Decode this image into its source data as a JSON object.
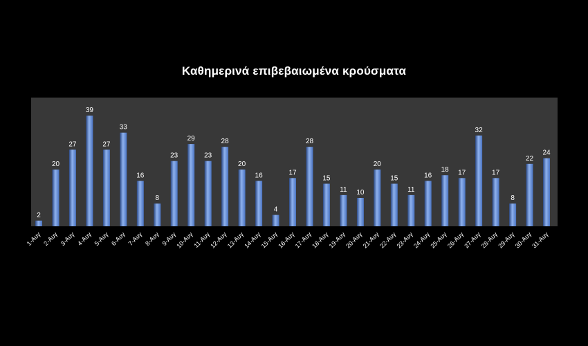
{
  "colors": {
    "background": "#000000",
    "plot_area": "#383838",
    "bar": "#4a73c0",
    "bar_highlight": "#8fb2ee",
    "bar_shadow": "#2c4a87",
    "text": "#ffffff"
  },
  "chart_data": {
    "type": "bar",
    "title": "Καθημερινά επιβεβαιωμένα κρούσματα",
    "xlabel": "",
    "ylabel": "",
    "ylim": [
      0,
      40
    ],
    "grid": false,
    "categories": [
      "1-Αυγ",
      "2-Αυγ",
      "3-Αυγ",
      "4-Αυγ",
      "5-Αυγ",
      "6-Αυγ",
      "7-Αυγ",
      "8-Αυγ",
      "9-Αυγ",
      "10-Αυγ",
      "11-Αυγ",
      "12-Αυγ",
      "13-Αυγ",
      "14-Αυγ",
      "15-Αυγ",
      "16-Αυγ",
      "17-Αυγ",
      "18-Αυγ",
      "19-Αυγ",
      "20-Αυγ",
      "21-Αυγ",
      "22-Αυγ",
      "23-Αυγ",
      "24-Αυγ",
      "25-Αυγ",
      "26-Αυγ",
      "27-Αυγ",
      "28-Αυγ",
      "29-Αυγ",
      "30-Αυγ",
      "31-Αυγ"
    ],
    "values": [
      2,
      20,
      27,
      39,
      27,
      33,
      16,
      8,
      23,
      29,
      23,
      28,
      20,
      16,
      4,
      17,
      28,
      15,
      11,
      10,
      20,
      15,
      11,
      16,
      18,
      17,
      32,
      17,
      8,
      22,
      24
    ],
    "data_labels": [
      "2",
      "20",
      "27",
      "39",
      "27",
      "33",
      "16",
      "8",
      "23",
      "29",
      "23",
      "28",
      "20",
      "16",
      "4",
      "17",
      "28",
      "15",
      "11",
      "10",
      "20",
      "15",
      "11",
      "16",
      "18",
      "17",
      "32",
      "17",
      "8",
      "22",
      "24"
    ]
  }
}
